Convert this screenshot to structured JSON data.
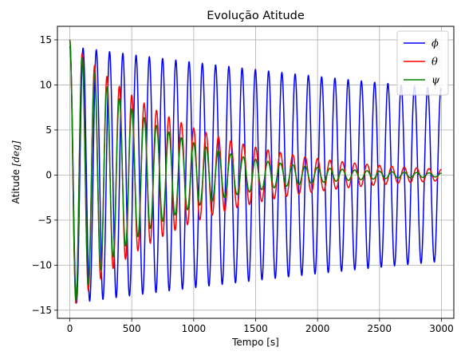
{
  "chart_data": {
    "type": "line",
    "title": "Evolução Atitude",
    "xlabel": "Tempo [s]",
    "ylabel_prefix": "Atitude ",
    "ylabel_unit": "[deg]",
    "xlim": [
      -100,
      3100
    ],
    "ylim": [
      -15.9,
      16.5
    ],
    "xticks": [
      0,
      500,
      1000,
      1500,
      2000,
      2500,
      3000
    ],
    "yticks": [
      -15,
      -10,
      -5,
      0,
      5,
      10,
      15
    ],
    "ytick_labels": [
      "−15",
      "−10",
      "−5",
      "0",
      "5",
      "10",
      "15"
    ],
    "grid": true,
    "legend_position": "top-right",
    "series": [
      {
        "name": "ϕ",
        "color": "#0000ff",
        "initial": 15,
        "amplitude": 14.3,
        "decay_time": 7500,
        "period": 107,
        "end_time": 3000
      },
      {
        "name": "θ",
        "color": "#ff0000",
        "initial": 15,
        "amplitude": 15.0,
        "decay_time": 950,
        "period": 100,
        "end_time": 3000
      },
      {
        "name": "ψ",
        "color": "#008000",
        "initial": 15,
        "amplitude": 15.0,
        "decay_time": 700,
        "period": 100,
        "end_time": 3000
      }
    ]
  }
}
